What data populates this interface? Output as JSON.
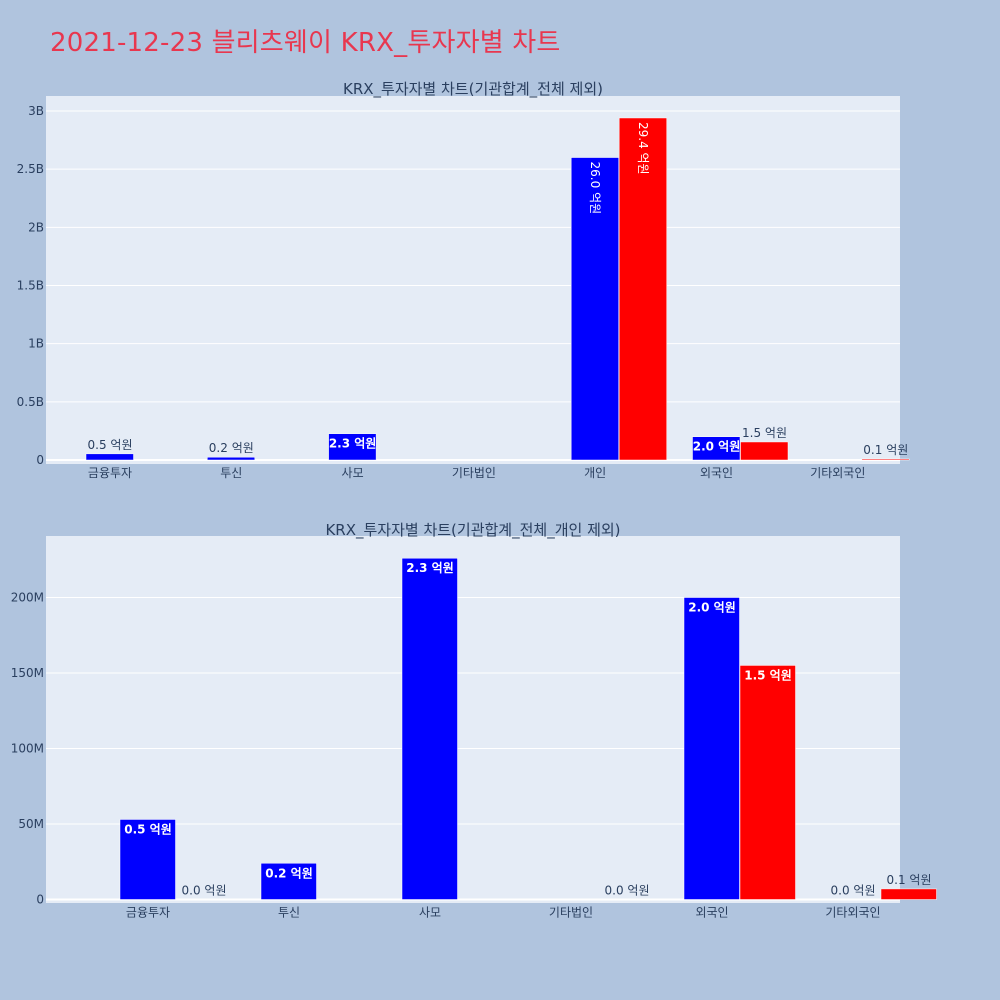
{
  "title": "2021-12-23 블리츠웨이 KRX_투자자별 차트",
  "colors": {
    "buy": "#0000ff",
    "sell": "#ff0000",
    "plot_bg": "#e5ecf6",
    "page_bg": "#b0c4de",
    "title": "#e8374f",
    "text": "#2a3f5f"
  },
  "chart_data": [
    {
      "type": "bar",
      "title": "KRX_투자자별 차트(기관합계_전체 제외)",
      "categories": [
        "금융투자",
        "투신",
        "사모",
        "기타법인",
        "개인",
        "외국인",
        "기타외국인"
      ],
      "ylim": [
        0,
        3000000000
      ],
      "yticks": [
        0,
        500000000,
        1000000000,
        1500000000,
        2000000000,
        2500000000,
        3000000000
      ],
      "ytick_labels": [
        "0",
        "0.5B",
        "1B",
        "1.5B",
        "2B",
        "2.5B",
        "3B"
      ],
      "grid": true,
      "series": [
        {
          "color": "#0000ff",
          "values": [
            53000000,
            24000000,
            226000000,
            null,
            2600000000,
            200000000,
            null
          ],
          "labels": [
            "0.5 억원",
            "0.2 억원",
            "2.3 억원",
            null,
            "26.0 억원",
            "2.0 억원",
            null
          ]
        },
        {
          "color": "#ff0000",
          "values": [
            null,
            null,
            null,
            null,
            2940000000,
            155000000,
            7000000
          ],
          "labels": [
            null,
            null,
            null,
            null,
            "29.4 억원",
            "1.5 억원",
            "0.1 억원"
          ]
        }
      ]
    },
    {
      "type": "bar",
      "title": "KRX_투자자별 차트(기관합계_전체_개인 제외)",
      "categories": [
        "금융투자",
        "투신",
        "사모",
        "기타법인",
        "외국인",
        "기타외국인"
      ],
      "ylim": [
        0,
        240000000
      ],
      "yticks": [
        0,
        50000000,
        100000000,
        150000000,
        200000000
      ],
      "ytick_labels": [
        "0",
        "50M",
        "100M",
        "150M",
        "200M"
      ],
      "grid": true,
      "series": [
        {
          "color": "#0000ff",
          "values": [
            53000000,
            24000000,
            226000000,
            null,
            200000000,
            0
          ],
          "labels": [
            "0.5 억원",
            "0.2 억원",
            "2.3 억원",
            null,
            "2.0 억원",
            "0.0 억원"
          ]
        },
        {
          "color": "#ff0000",
          "values": [
            0,
            null,
            null,
            0,
            155000000,
            7000000
          ],
          "labels": [
            "0.0 억원",
            null,
            null,
            "0.0 억원",
            "1.5 억원",
            "0.1 억원"
          ]
        }
      ]
    }
  ]
}
